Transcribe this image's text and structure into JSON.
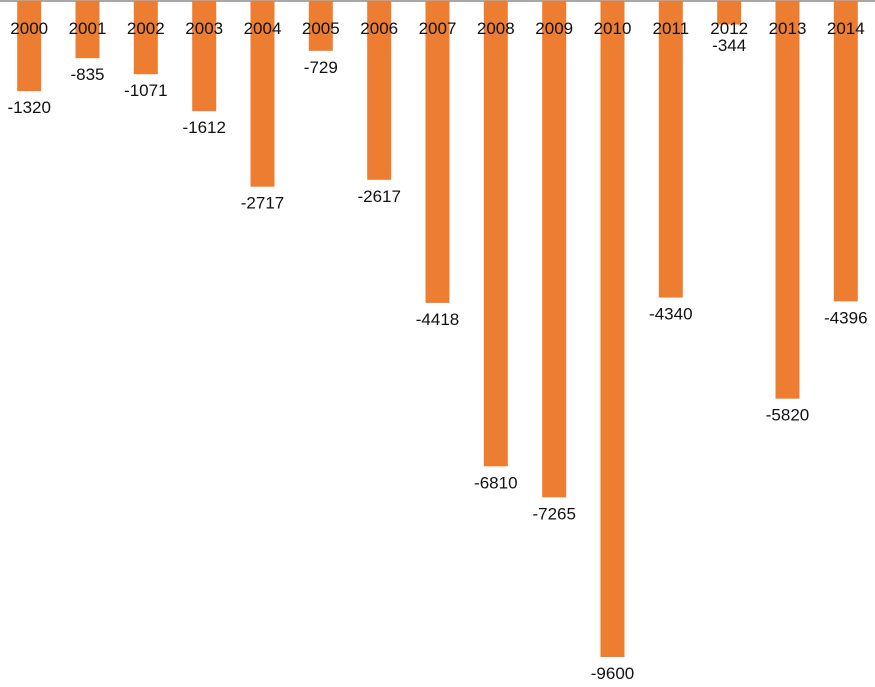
{
  "chart_data": {
    "type": "bar",
    "title": "",
    "xlabel": "",
    "ylabel": "",
    "grid": false,
    "categories": [
      "2000",
      "2001",
      "2002",
      "2003",
      "2004",
      "2005",
      "2006",
      "2007",
      "2008",
      "2009",
      "2010",
      "2011",
      "2012",
      "2013",
      "2014"
    ],
    "series": [
      {
        "values": [
          -1320,
          -835,
          -1071,
          -1612,
          -2717,
          -729,
          -2617,
          -4418,
          -6810,
          -7265,
          -9600,
          -4340,
          -344,
          -5820,
          -4396
        ],
        "color": "#ED7D31"
      }
    ],
    "ylim": [
      -9600,
      0
    ],
    "axis_color": "#8c8c8c"
  }
}
